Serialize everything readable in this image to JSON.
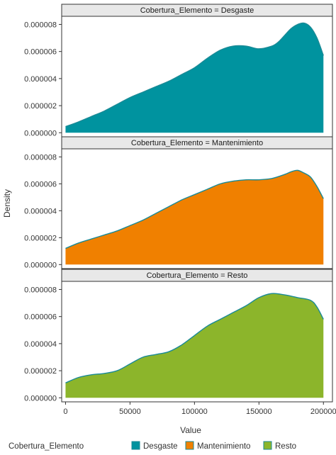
{
  "chart_data": {
    "type": "area",
    "xlabel": "Value",
    "ylabel": "Density",
    "xlim": [
      -3000,
      207000
    ],
    "ylim": [
      -3e-07,
      8.6e-06
    ],
    "x_ticks": [
      0,
      50000,
      100000,
      150000,
      200000
    ],
    "x_tick_labels": [
      "0",
      "50000",
      "100000",
      "150000",
      "200000"
    ],
    "y_ticks": [
      0,
      2e-06,
      4e-06,
      6e-06,
      8e-06
    ],
    "y_tick_labels": [
      "0.000000",
      "0.000002",
      "0.000004",
      "0.000006",
      "0.000008"
    ],
    "legend": {
      "title": "Cobertura_Elemento",
      "position": "bottom",
      "entries": [
        "Desgaste",
        "Mantenimiento",
        "Resto"
      ]
    },
    "panels": [
      {
        "strip": "Cobertura_Elemento = Desgaste",
        "name": "Desgaste",
        "fill": "#00939F",
        "line": "#1A8A96",
        "x": [
          0,
          10000,
          20000,
          30000,
          40000,
          50000,
          60000,
          70000,
          80000,
          90000,
          100000,
          110000,
          120000,
          130000,
          140000,
          150000,
          160000,
          165000,
          170000,
          175000,
          180000,
          185000,
          190000,
          195000,
          200000
        ],
        "y": [
          4.5e-07,
          8e-07,
          1.2e-06,
          1.6e-06,
          2.1e-06,
          2.6e-06,
          3e-06,
          3.4e-06,
          3.8e-06,
          4.3e-06,
          4.8e-06,
          5.5e-06,
          6.1e-06,
          6.4e-06,
          6.4e-06,
          6.2e-06,
          6.4e-06,
          6.7e-06,
          7.2e-06,
          7.7e-06,
          8e-06,
          8.1e-06,
          7.8e-06,
          7e-06,
          5.7e-06
        ]
      },
      {
        "strip": "Cobertura_Elemento = Mantenimiento",
        "name": "Mantenimiento",
        "fill": "#F08000",
        "line": "#1A8A96",
        "x": [
          0,
          10000,
          20000,
          30000,
          40000,
          50000,
          60000,
          70000,
          80000,
          90000,
          100000,
          110000,
          120000,
          130000,
          140000,
          150000,
          160000,
          170000,
          175000,
          180000,
          185000,
          190000,
          195000,
          200000
        ],
        "y": [
          1.2e-06,
          1.6e-06,
          1.9e-06,
          2.2e-06,
          2.5e-06,
          2.9e-06,
          3.3e-06,
          3.8e-06,
          4.3e-06,
          4.8e-06,
          5.2e-06,
          5.6e-06,
          6e-06,
          6.2e-06,
          6.3e-06,
          6.3e-06,
          6.4e-06,
          6.7e-06,
          6.9e-06,
          7e-06,
          6.8e-06,
          6.5e-06,
          5.8e-06,
          4.9e-06
        ]
      },
      {
        "strip": "Cobertura_Elemento = Resto",
        "name": "Resto",
        "fill": "#8CB52B",
        "line": "#1A8A96",
        "x": [
          0,
          10000,
          20000,
          30000,
          40000,
          50000,
          60000,
          70000,
          80000,
          90000,
          100000,
          110000,
          120000,
          130000,
          140000,
          150000,
          160000,
          170000,
          180000,
          190000,
          195000,
          200000
        ],
        "y": [
          1.1e-06,
          1.5e-06,
          1.7e-06,
          1.8e-06,
          2e-06,
          2.5e-06,
          3e-06,
          3.2e-06,
          3.4e-06,
          3.9e-06,
          4.6e-06,
          5.3e-06,
          5.8e-06,
          6.3e-06,
          6.8e-06,
          7.4e-06,
          7.7e-06,
          7.6e-06,
          7.4e-06,
          7.2e-06,
          6.7e-06,
          5.8e-06
        ]
      }
    ]
  }
}
